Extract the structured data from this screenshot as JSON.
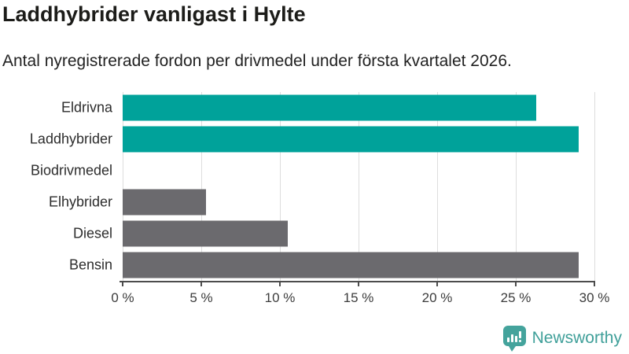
{
  "header": {
    "title": "Laddhybrider vanligast i Hylte",
    "subtitle": "Antal nyregistrerade fordon per drivmedel under första kvartalet 2026."
  },
  "chart_data": {
    "type": "bar",
    "orientation": "horizontal",
    "title": "Laddhybrider vanligast i Hylte",
    "subtitle": "Antal nyregistrerade fordon per drivmedel under första kvartalet 2026.",
    "categories": [
      "Eldrivna",
      "Laddhybrider",
      "Biodrivmedel",
      "Elhybrider",
      "Diesel",
      "Bensin"
    ],
    "values": [
      26.3,
      29.0,
      0,
      5.3,
      10.5,
      29.0
    ],
    "unit": "%",
    "xlabel": "",
    "ylabel": "",
    "xlim": [
      0,
      30
    ],
    "ticks": [
      0,
      5,
      10,
      15,
      20,
      25,
      30
    ],
    "tick_labels": [
      "0 %",
      "5 %",
      "10 %",
      "15 %",
      "20 %",
      "25 %",
      "30 %"
    ],
    "bar_colors": [
      "#00a29a",
      "#00a29a",
      "#6b6a6e",
      "#6b6a6e",
      "#6b6a6e",
      "#6b6a6e"
    ],
    "grid": true,
    "legend": "none",
    "accent_teal": "#00a29a",
    "accent_gray": "#6b6a6e",
    "gridline_color": "#dddddd",
    "axis_color": "#4c4c4c"
  },
  "footer": {
    "brand": "Newsworthy",
    "brand_color": "#3f9f99",
    "logo_icon": "bar-chart-speech-bubble",
    "logo_color": "#44a39c"
  }
}
